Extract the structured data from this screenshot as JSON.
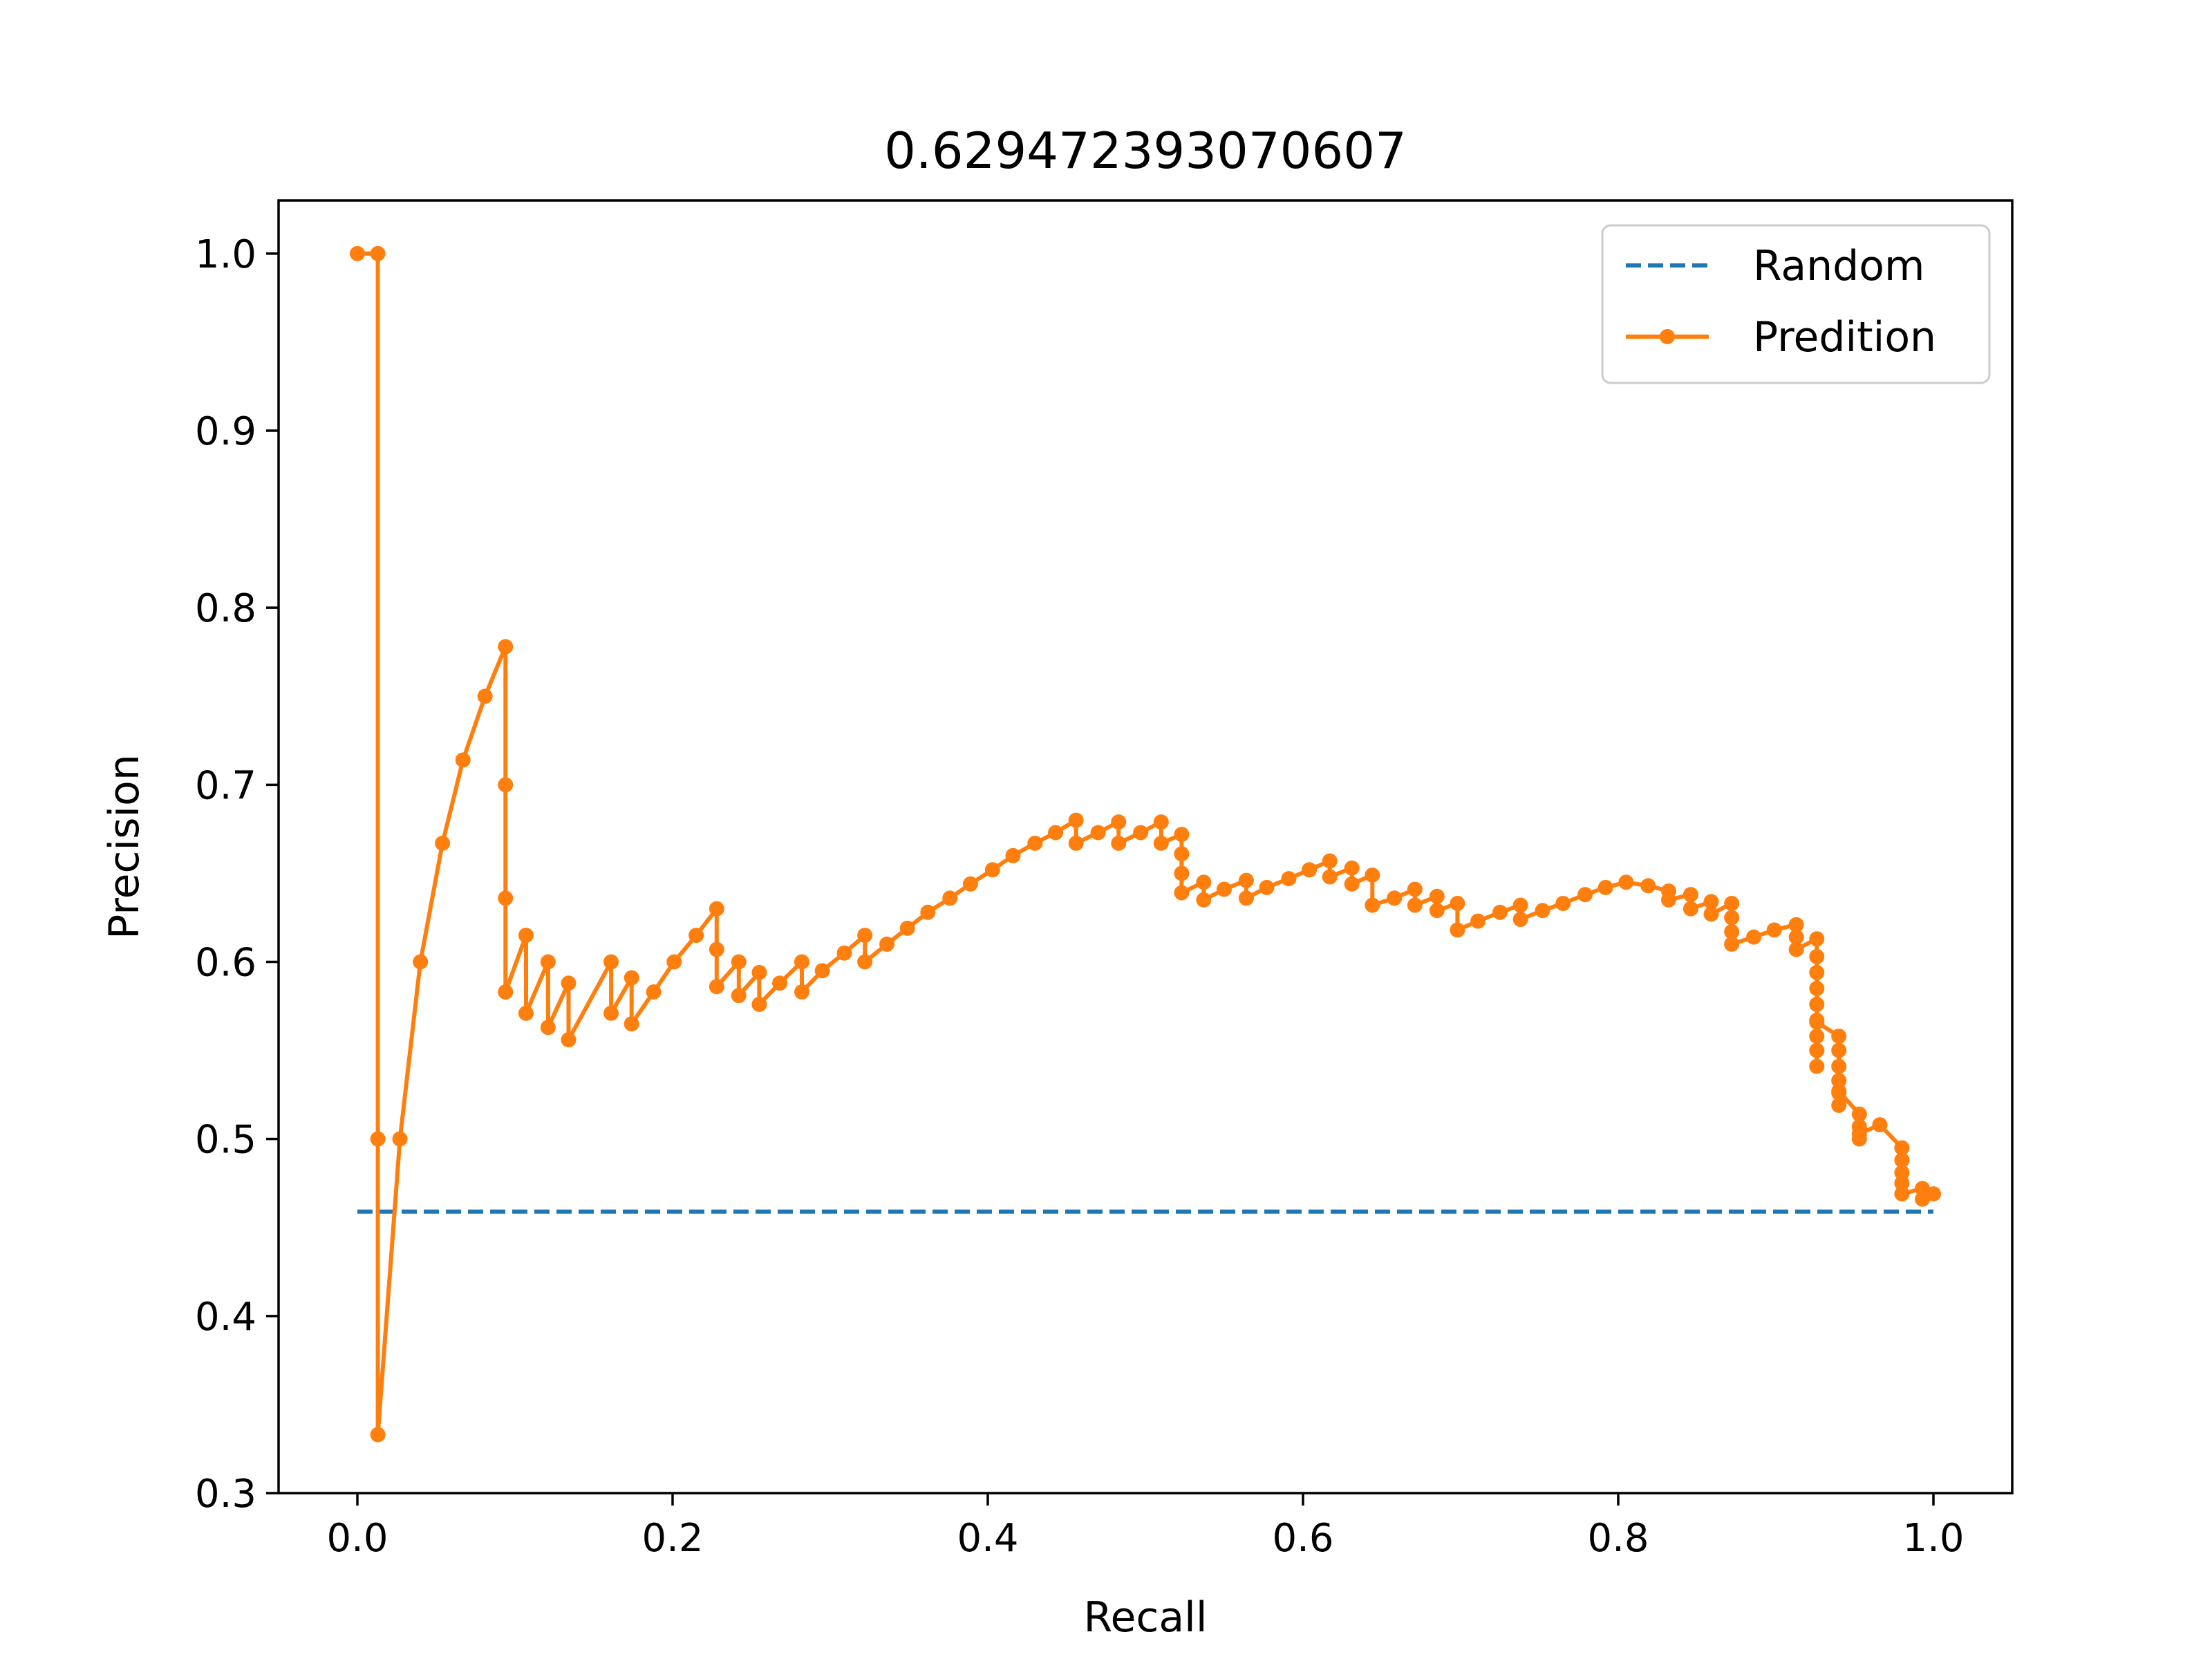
{
  "chart_data": {
    "type": "line",
    "title": "0.629472393070607",
    "xlabel": "Recall",
    "ylabel": "Precision",
    "xlim": [
      -0.05,
      1.05
    ],
    "ylim": [
      0.3,
      1.03
    ],
    "xticks": [
      {
        "value": 0.0,
        "label": "0.0"
      },
      {
        "value": 0.2,
        "label": "0.2"
      },
      {
        "value": 0.4,
        "label": "0.4"
      },
      {
        "value": 0.6,
        "label": "0.6"
      },
      {
        "value": 0.8,
        "label": "0.8"
      },
      {
        "value": 1.0,
        "label": "1.0"
      }
    ],
    "yticks": [
      {
        "value": 0.3,
        "label": "0.3"
      },
      {
        "value": 0.4,
        "label": "0.4"
      },
      {
        "value": 0.5,
        "label": "0.5"
      },
      {
        "value": 0.6,
        "label": "0.6"
      },
      {
        "value": 0.7,
        "label": "0.7"
      },
      {
        "value": 0.8,
        "label": "0.8"
      },
      {
        "value": 0.9,
        "label": "0.9"
      },
      {
        "value": 1.0,
        "label": "1.0"
      }
    ],
    "grid": false,
    "legend": {
      "position": "top-right"
    },
    "series": [
      {
        "name": "Random",
        "style": "dashed",
        "marker": "none",
        "color": "#1f77b4",
        "x": [
          0.0,
          1.0
        ],
        "y": [
          0.459,
          0.459
        ]
      },
      {
        "name": "Predition",
        "style": "solid",
        "marker": "dot",
        "color": "#ff7f0e",
        "x": [
          0.0,
          0.013,
          0.013,
          0.013,
          0.027,
          0.04,
          0.054,
          0.067,
          0.081,
          0.094,
          0.094,
          0.094,
          0.094,
          0.107,
          0.107,
          0.121,
          0.121,
          0.134,
          0.134,
          0.161,
          0.161,
          0.174,
          0.174,
          0.188,
          0.201,
          0.215,
          0.228,
          0.228,
          0.228,
          0.242,
          0.242,
          0.255,
          0.255,
          0.268,
          0.282,
          0.282,
          0.295,
          0.309,
          0.322,
          0.322,
          0.336,
          0.349,
          0.362,
          0.376,
          0.389,
          0.403,
          0.416,
          0.43,
          0.443,
          0.456,
          0.456,
          0.47,
          0.483,
          0.483,
          0.497,
          0.51,
          0.51,
          0.523,
          0.523,
          0.523,
          0.523,
          0.537,
          0.537,
          0.55,
          0.564,
          0.564,
          0.577,
          0.591,
          0.604,
          0.617,
          0.617,
          0.631,
          0.631,
          0.644,
          0.644,
          0.658,
          0.671,
          0.671,
          0.685,
          0.685,
          0.698,
          0.698,
          0.711,
          0.725,
          0.738,
          0.738,
          0.752,
          0.765,
          0.779,
          0.792,
          0.805,
          0.819,
          0.832,
          0.832,
          0.846,
          0.846,
          0.859,
          0.859,
          0.872,
          0.872,
          0.872,
          0.872,
          0.886,
          0.899,
          0.913,
          0.913,
          0.913,
          0.926,
          0.926,
          0.926,
          0.926,
          0.926,
          0.926,
          0.926,
          0.926,
          0.926,
          0.926,
          0.94,
          0.94,
          0.94,
          0.94,
          0.94,
          0.94,
          0.94,
          0.953,
          0.953,
          0.953,
          0.953,
          0.966,
          0.98,
          0.98,
          0.98,
          0.98,
          0.98,
          0.993,
          0.993,
          1.0
        ],
        "y": [
          1.0,
          1.0,
          0.5,
          0.333,
          0.5,
          0.6,
          0.667,
          0.714,
          0.75,
          0.778,
          0.7,
          0.636,
          0.583,
          0.615,
          0.571,
          0.6,
          0.563,
          0.588,
          0.556,
          0.6,
          0.571,
          0.591,
          0.565,
          0.583,
          0.6,
          0.615,
          0.63,
          0.607,
          0.586,
          0.6,
          0.581,
          0.594,
          0.576,
          0.588,
          0.6,
          0.583,
          0.595,
          0.605,
          0.615,
          0.6,
          0.61,
          0.619,
          0.628,
          0.636,
          0.644,
          0.652,
          0.66,
          0.667,
          0.673,
          0.68,
          0.667,
          0.673,
          0.679,
          0.667,
          0.673,
          0.679,
          0.667,
          0.672,
          0.661,
          0.65,
          0.639,
          0.645,
          0.635,
          0.641,
          0.646,
          0.636,
          0.642,
          0.647,
          0.652,
          0.657,
          0.648,
          0.653,
          0.644,
          0.649,
          0.632,
          0.636,
          0.641,
          0.632,
          0.637,
          0.629,
          0.633,
          0.618,
          0.623,
          0.628,
          0.632,
          0.624,
          0.629,
          0.633,
          0.638,
          0.642,
          0.645,
          0.643,
          0.64,
          0.635,
          0.638,
          0.63,
          0.634,
          0.627,
          0.633,
          0.625,
          0.617,
          0.61,
          0.614,
          0.618,
          0.621,
          0.614,
          0.607,
          0.613,
          0.603,
          0.594,
          0.585,
          0.576,
          0.567,
          0.558,
          0.55,
          0.541,
          0.566,
          0.558,
          0.55,
          0.541,
          0.533,
          0.526,
          0.519,
          0.527,
          0.514,
          0.507,
          0.5,
          0.503,
          0.508,
          0.495,
          0.488,
          0.481,
          0.475,
          0.469,
          0.472,
          0.466,
          0.469
        ]
      }
    ]
  }
}
